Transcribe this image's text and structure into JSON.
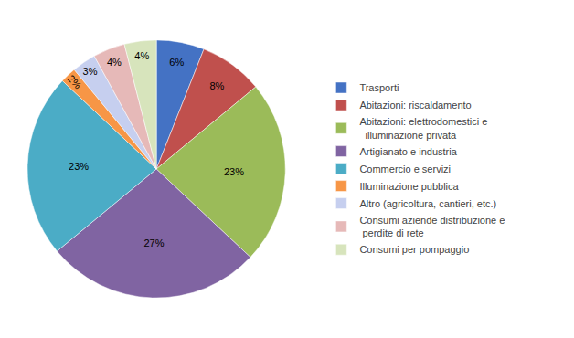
{
  "chart_data": {
    "type": "pie",
    "categories": [
      "Trasporti",
      "Abitazioni: riscaldamento",
      "Abitazioni: elettrodomestici e\n  illuminazione privata",
      "Artigianato e industria",
      "Commercio e servizi",
      "Illuminazione pubblica",
      "Altro (agricoltura, cantieri, etc.)",
      "Consumi aziende distribuzione e\n perdite di rete",
      "Consumi per pompaggio"
    ],
    "values": [
      6,
      8,
      23,
      27,
      23,
      2,
      3,
      4,
      4
    ],
    "value_labels": [
      "6%",
      "8%",
      "23%",
      "27%",
      "23%",
      "2%",
      "3%",
      "4%",
      "4%"
    ],
    "colors": [
      "#4472C4",
      "#C0504D",
      "#9BBB59",
      "#8064A2",
      "#4BACC6",
      "#F79646",
      "#C6CFEF",
      "#E6B9B8",
      "#D7E4BC"
    ],
    "data_labels": true,
    "legend": "right"
  }
}
